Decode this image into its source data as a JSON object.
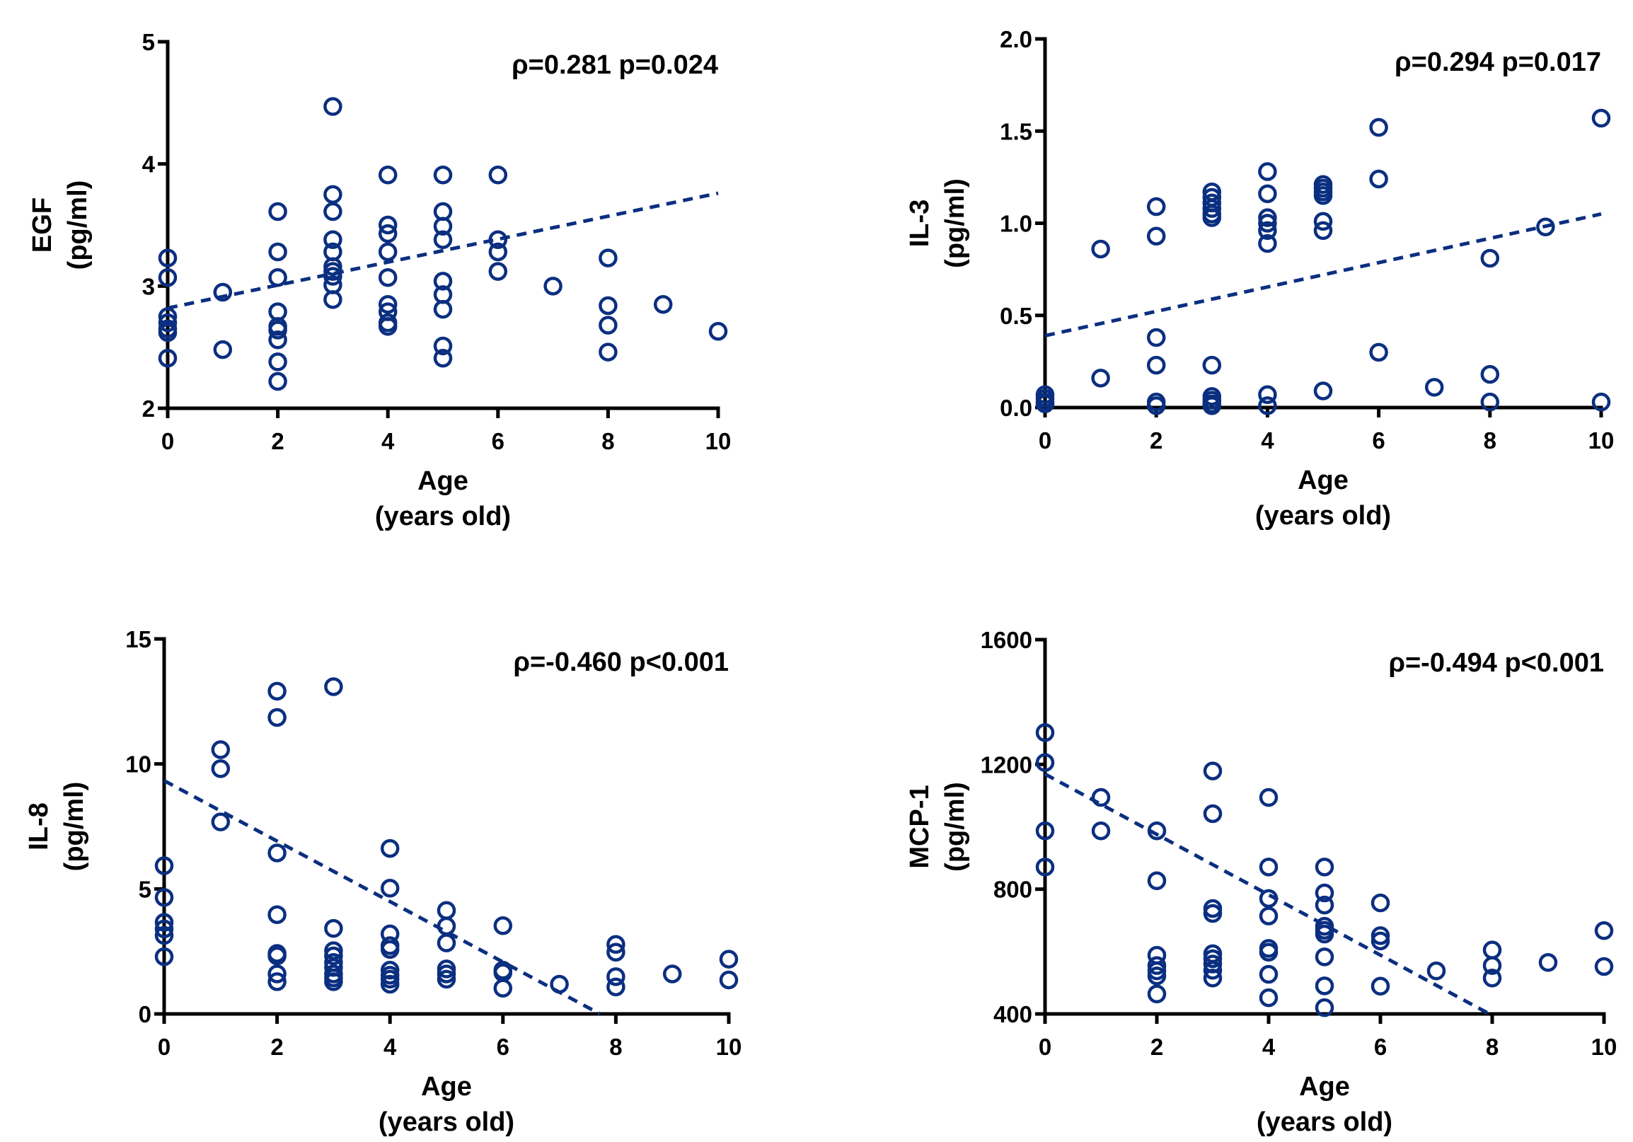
{
  "figure": {
    "color": "#0b2f80"
  },
  "chart_data": [
    {
      "type": "scatter",
      "id": "egf",
      "ylabel": "EGF",
      "yunit": "(pg/ml)",
      "xlabel": "Age",
      "xunit": "(years old)",
      "annotation": "ρ=0.281  p=0.024",
      "xlim": [
        0,
        10
      ],
      "ylim": [
        2,
        5
      ],
      "xticks": [
        "0",
        "2",
        "4",
        "6",
        "8",
        "10"
      ],
      "xtick_values": [
        0,
        2,
        4,
        6,
        8,
        10
      ],
      "yticks": [
        "2",
        "3",
        "4",
        "5"
      ],
      "ytick_values": [
        2,
        3,
        4,
        5
      ],
      "trendline": {
        "x": [
          0,
          10
        ],
        "y": [
          2.82,
          3.76
        ],
        "style": "dashed"
      },
      "points": [
        [
          0,
          3.23
        ],
        [
          0,
          3.07
        ],
        [
          0,
          2.75
        ],
        [
          0,
          2.7
        ],
        [
          0,
          2.65
        ],
        [
          0,
          2.62
        ],
        [
          0,
          2.41
        ],
        [
          1,
          2.95
        ],
        [
          1,
          2.48
        ],
        [
          2,
          3.61
        ],
        [
          2,
          3.28
        ],
        [
          2,
          3.07
        ],
        [
          2,
          2.79
        ],
        [
          2,
          2.67
        ],
        [
          2,
          2.64
        ],
        [
          2,
          2.56
        ],
        [
          2,
          2.38
        ],
        [
          2,
          2.22
        ],
        [
          3,
          4.47
        ],
        [
          3,
          3.75
        ],
        [
          3,
          3.61
        ],
        [
          3,
          3.38
        ],
        [
          3,
          3.28
        ],
        [
          3,
          3.16
        ],
        [
          3,
          3.12
        ],
        [
          3,
          3.08
        ],
        [
          3,
          3.01
        ],
        [
          3,
          2.89
        ],
        [
          4,
          3.91
        ],
        [
          4,
          3.5
        ],
        [
          4,
          3.43
        ],
        [
          4,
          3.28
        ],
        [
          4,
          3.07
        ],
        [
          4,
          2.85
        ],
        [
          4,
          2.79
        ],
        [
          4,
          2.7
        ],
        [
          4,
          2.67
        ],
        [
          5,
          3.91
        ],
        [
          5,
          3.61
        ],
        [
          5,
          3.49
        ],
        [
          5,
          3.38
        ],
        [
          5,
          3.04
        ],
        [
          5,
          2.93
        ],
        [
          5,
          2.81
        ],
        [
          5,
          2.51
        ],
        [
          5,
          2.41
        ],
        [
          6,
          3.91
        ],
        [
          6,
          3.38
        ],
        [
          6,
          3.28
        ],
        [
          6,
          3.12
        ],
        [
          7,
          3.0
        ],
        [
          8,
          3.23
        ],
        [
          8,
          2.84
        ],
        [
          8,
          2.68
        ],
        [
          8,
          2.46
        ],
        [
          9,
          2.85
        ],
        [
          10,
          2.63
        ]
      ]
    },
    {
      "type": "scatter",
      "id": "il3",
      "ylabel": "IL-3",
      "yunit": "(pg/ml)",
      "xlabel": "Age",
      "xunit": "(years old)",
      "annotation": "ρ=0.294  p=0.017",
      "xlim": [
        0,
        10
      ],
      "ylim": [
        0,
        2
      ],
      "xticks": [
        "0",
        "2",
        "4",
        "6",
        "8",
        "10"
      ],
      "xtick_values": [
        0,
        2,
        4,
        6,
        8,
        10
      ],
      "yticks": [
        "0.0",
        "0.5",
        "1.0",
        "1.5",
        "2.0"
      ],
      "ytick_values": [
        0,
        0.5,
        1.0,
        1.5,
        2.0
      ],
      "trendline": {
        "x": [
          0,
          10
        ],
        "y": [
          0.39,
          1.05
        ],
        "style": "dashed"
      },
      "points": [
        [
          0,
          0.07
        ],
        [
          0,
          0.05
        ],
        [
          0,
          0.03
        ],
        [
          0,
          0.02
        ],
        [
          1,
          0.86
        ],
        [
          1,
          0.16
        ],
        [
          2,
          1.09
        ],
        [
          2,
          0.93
        ],
        [
          2,
          0.38
        ],
        [
          2,
          0.23
        ],
        [
          2,
          0.03
        ],
        [
          2,
          0.01
        ],
        [
          3,
          1.17
        ],
        [
          3,
          1.14
        ],
        [
          3,
          1.11
        ],
        [
          3,
          1.08
        ],
        [
          3,
          1.05
        ],
        [
          3,
          1.03
        ],
        [
          3,
          0.23
        ],
        [
          3,
          0.06
        ],
        [
          3,
          0.04
        ],
        [
          3,
          0.02
        ],
        [
          3,
          0.01
        ],
        [
          4,
          1.28
        ],
        [
          4,
          1.16
        ],
        [
          4,
          1.03
        ],
        [
          4,
          1.0
        ],
        [
          4,
          0.96
        ],
        [
          4,
          0.89
        ],
        [
          4,
          0.07
        ],
        [
          4,
          0.01
        ],
        [
          5,
          1.21
        ],
        [
          5,
          1.19
        ],
        [
          5,
          1.17
        ],
        [
          5,
          1.15
        ],
        [
          5,
          1.01
        ],
        [
          5,
          0.96
        ],
        [
          5,
          0.09
        ],
        [
          6,
          1.52
        ],
        [
          6,
          1.24
        ],
        [
          6,
          0.3
        ],
        [
          7,
          0.11
        ],
        [
          8,
          0.81
        ],
        [
          8,
          0.18
        ],
        [
          8,
          0.03
        ],
        [
          9,
          0.98
        ],
        [
          10,
          1.57
        ],
        [
          10,
          0.03
        ]
      ]
    },
    {
      "type": "scatter",
      "id": "il8",
      "ylabel": "IL-8",
      "yunit": "(pg/ml)",
      "xlabel": "Age",
      "xunit": "(years old)",
      "annotation": "ρ=-0.460  p<0.001",
      "xlim": [
        0,
        10
      ],
      "ylim": [
        0,
        15
      ],
      "xticks": [
        "0",
        "2",
        "4",
        "6",
        "8",
        "10"
      ],
      "xtick_values": [
        0,
        2,
        4,
        6,
        8,
        10
      ],
      "yticks": [
        "0",
        "5",
        "10",
        "15"
      ],
      "ytick_values": [
        0,
        5,
        10,
        15
      ],
      "trendline": {
        "x": [
          0,
          7.72
        ],
        "y": [
          9.33,
          0
        ],
        "style": "dashed"
      },
      "points": [
        [
          0,
          5.93
        ],
        [
          0,
          4.66
        ],
        [
          0,
          3.66
        ],
        [
          0,
          3.4
        ],
        [
          0,
          3.14
        ],
        [
          0,
          2.29
        ],
        [
          1,
          10.57
        ],
        [
          1,
          9.81
        ],
        [
          1,
          7.68
        ],
        [
          2,
          12.91
        ],
        [
          2,
          11.86
        ],
        [
          2,
          6.44
        ],
        [
          2,
          3.97
        ],
        [
          2,
          2.42
        ],
        [
          2,
          2.32
        ],
        [
          2,
          1.6
        ],
        [
          2,
          1.29
        ],
        [
          3,
          13.09
        ],
        [
          3,
          3.42
        ],
        [
          3,
          2.53
        ],
        [
          3,
          2.32
        ],
        [
          3,
          2.06
        ],
        [
          3,
          1.86
        ],
        [
          3,
          1.6
        ],
        [
          3,
          1.44
        ],
        [
          3,
          1.29
        ],
        [
          4,
          6.62
        ],
        [
          4,
          5.03
        ],
        [
          4,
          3.2
        ],
        [
          4,
          2.73
        ],
        [
          4,
          2.58
        ],
        [
          4,
          1.75
        ],
        [
          4,
          1.55
        ],
        [
          4,
          1.39
        ],
        [
          4,
          1.19
        ],
        [
          5,
          4.14
        ],
        [
          5,
          3.51
        ],
        [
          5,
          2.84
        ],
        [
          5,
          1.8
        ],
        [
          5,
          1.6
        ],
        [
          5,
          1.39
        ],
        [
          6,
          3.53
        ],
        [
          6,
          1.75
        ],
        [
          6,
          1.65
        ],
        [
          6,
          1.03
        ],
        [
          7,
          1.19
        ],
        [
          8,
          2.78
        ],
        [
          8,
          2.47
        ],
        [
          8,
          1.49
        ],
        [
          8,
          1.08
        ],
        [
          9,
          1.6
        ],
        [
          10,
          2.19
        ],
        [
          10,
          1.36
        ]
      ]
    },
    {
      "type": "scatter",
      "id": "mcp1",
      "ylabel": "MCP-1",
      "yunit": "(pg/ml)",
      "xlabel": "Age",
      "xunit": "(years old)",
      "annotation": "ρ=-0.494  p<0.001",
      "xlim": [
        0,
        10
      ],
      "ylim": [
        400,
        1600
      ],
      "xticks": [
        "0",
        "2",
        "4",
        "6",
        "8",
        "10"
      ],
      "xtick_values": [
        0,
        2,
        4,
        6,
        8,
        10
      ],
      "yticks": [
        "400",
        "800",
        "1200",
        "1600"
      ],
      "ytick_values": [
        400,
        800,
        1200,
        1600
      ],
      "trendline": {
        "x": [
          0,
          7.95
        ],
        "y": [
          1169,
          400
        ],
        "style": "dashed"
      },
      "points": [
        [
          0,
          1302
        ],
        [
          0,
          1206
        ],
        [
          0,
          987
        ],
        [
          0,
          871
        ],
        [
          1,
          1094
        ],
        [
          1,
          987
        ],
        [
          2,
          987
        ],
        [
          2,
          827
        ],
        [
          2,
          588
        ],
        [
          2,
          555
        ],
        [
          2,
          538
        ],
        [
          2,
          522
        ],
        [
          2,
          464
        ],
        [
          3,
          1179
        ],
        [
          3,
          1042
        ],
        [
          3,
          738
        ],
        [
          3,
          722
        ],
        [
          3,
          593
        ],
        [
          3,
          577
        ],
        [
          3,
          560
        ],
        [
          3,
          540
        ],
        [
          3,
          515
        ],
        [
          4,
          1094
        ],
        [
          4,
          871
        ],
        [
          4,
          770
        ],
        [
          4,
          714
        ],
        [
          4,
          610
        ],
        [
          4,
          598
        ],
        [
          4,
          527
        ],
        [
          4,
          452
        ],
        [
          5,
          871
        ],
        [
          5,
          788
        ],
        [
          5,
          749
        ],
        [
          5,
          681
        ],
        [
          5,
          668
        ],
        [
          5,
          656
        ],
        [
          5,
          583
        ],
        [
          5,
          490
        ],
        [
          5,
          420
        ],
        [
          6,
          756
        ],
        [
          6,
          651
        ],
        [
          6,
          634
        ],
        [
          6,
          489
        ],
        [
          7,
          538
        ],
        [
          8,
          605
        ],
        [
          8,
          555
        ],
        [
          8,
          515
        ],
        [
          9,
          565
        ],
        [
          10,
          667
        ],
        [
          10,
          552
        ]
      ]
    }
  ]
}
